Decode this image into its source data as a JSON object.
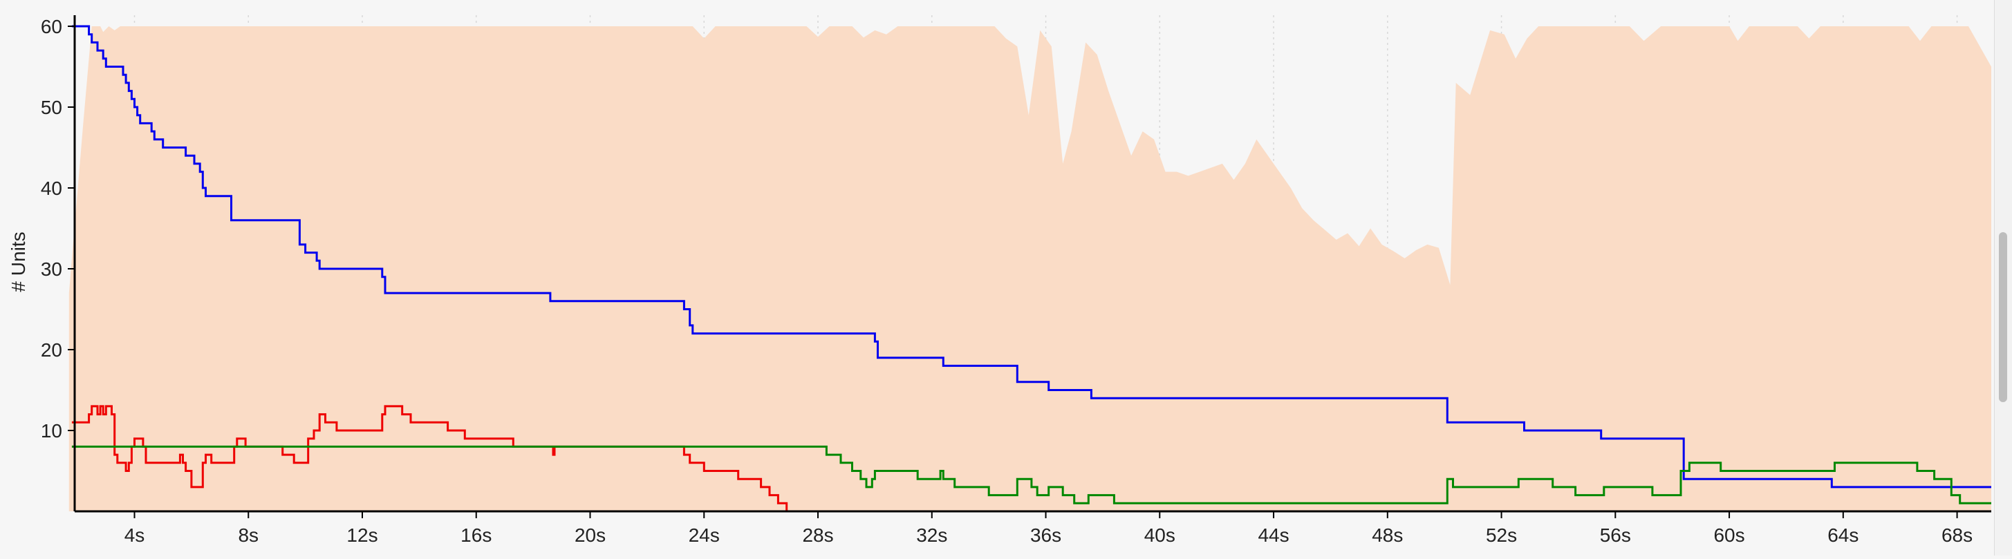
{
  "chart_data": {
    "type": "line",
    "title": "",
    "xlabel": "",
    "ylabel": "# Units",
    "xlim": [
      1.9,
      69.2
    ],
    "ylim": [
      0,
      61
    ],
    "x_ticks": [
      4,
      8,
      12,
      16,
      20,
      24,
      28,
      32,
      36,
      40,
      44,
      48,
      52,
      56,
      60,
      64,
      68
    ],
    "x_tick_labels": [
      "4s",
      "8s",
      "12s",
      "16s",
      "20s",
      "24s",
      "28s",
      "32s",
      "36s",
      "40s",
      "44s",
      "48s",
      "52s",
      "56s",
      "60s",
      "64s",
      "68s"
    ],
    "y_ticks": [
      10,
      20,
      30,
      40,
      50,
      60
    ],
    "y_tick_labels": [
      "10",
      "20",
      "30",
      "40",
      "50",
      "60"
    ],
    "grid": "vertical-dashed",
    "legend": "none",
    "colors": {
      "area": "#fadcc6",
      "blue": "#0000ee",
      "red": "#ee0000",
      "green": "#008800",
      "grid": "#d8d8d8",
      "axis": "#000000"
    },
    "series": [
      {
        "type": "area",
        "color": "#fadcc6",
        "points": [
          [
            1.7,
            27
          ],
          [
            2.2,
            48
          ],
          [
            2.5,
            60
          ],
          [
            2.8,
            60
          ],
          [
            2.9,
            59.3
          ],
          [
            3.1,
            60
          ],
          [
            3.3,
            59.5
          ],
          [
            3.5,
            60
          ],
          [
            20,
            60
          ],
          [
            23.6,
            60
          ],
          [
            24,
            58.5
          ],
          [
            24.4,
            60
          ],
          [
            27.6,
            60
          ],
          [
            28,
            58.7
          ],
          [
            28.4,
            60
          ],
          [
            29.2,
            60
          ],
          [
            29.6,
            58.6
          ],
          [
            30,
            59.5
          ],
          [
            30.4,
            59
          ],
          [
            30.8,
            60
          ],
          [
            34.2,
            60
          ],
          [
            34.6,
            58.5
          ],
          [
            35,
            57.5
          ],
          [
            35.4,
            49
          ],
          [
            35.8,
            59.5
          ],
          [
            36.2,
            57.5
          ],
          [
            36.6,
            43
          ],
          [
            36.9,
            47
          ],
          [
            37.4,
            58
          ],
          [
            37.8,
            56.5
          ],
          [
            38.2,
            52
          ],
          [
            38.6,
            48
          ],
          [
            39,
            44
          ],
          [
            39.4,
            47
          ],
          [
            39.8,
            46
          ],
          [
            40.2,
            42
          ],
          [
            40.6,
            42
          ],
          [
            41,
            41.5
          ],
          [
            41.4,
            42
          ],
          [
            41.8,
            42.5
          ],
          [
            42.2,
            43
          ],
          [
            42.6,
            41
          ],
          [
            43,
            43
          ],
          [
            43.4,
            46
          ],
          [
            43.8,
            44
          ],
          [
            44.2,
            42
          ],
          [
            44.6,
            40
          ],
          [
            45,
            37.5
          ],
          [
            45.4,
            36
          ],
          [
            45.8,
            34.8
          ],
          [
            46.2,
            33.6
          ],
          [
            46.6,
            34.4
          ],
          [
            47,
            32.8
          ],
          [
            47.4,
            35
          ],
          [
            47.8,
            33
          ],
          [
            48.2,
            32.2
          ],
          [
            48.6,
            31.3
          ],
          [
            49,
            32.3
          ],
          [
            49.4,
            33
          ],
          [
            49.8,
            32.6
          ],
          [
            50.2,
            28
          ],
          [
            50.4,
            53
          ],
          [
            50.9,
            51.5
          ],
          [
            51.6,
            59.5
          ],
          [
            52.1,
            59
          ],
          [
            52.5,
            56
          ],
          [
            52.9,
            58.5
          ],
          [
            53.3,
            60
          ],
          [
            56.5,
            60
          ],
          [
            57,
            58.2
          ],
          [
            57.6,
            60
          ],
          [
            60,
            60
          ],
          [
            60.3,
            58.2
          ],
          [
            60.7,
            60
          ],
          [
            62.4,
            60
          ],
          [
            62.8,
            58.5
          ],
          [
            63.2,
            60
          ],
          [
            66.3,
            60
          ],
          [
            66.7,
            58.2
          ],
          [
            67.1,
            60
          ],
          [
            68.4,
            60
          ],
          [
            68.8,
            57.5
          ],
          [
            69.2,
            55
          ]
        ]
      },
      {
        "name": "",
        "color": "#0000ee",
        "steps": [
          [
            1.8,
            60
          ],
          [
            2.4,
            59
          ],
          [
            2.5,
            58
          ],
          [
            2.7,
            57
          ],
          [
            2.9,
            56
          ],
          [
            3,
            55
          ],
          [
            3.6,
            54
          ],
          [
            3.7,
            53
          ],
          [
            3.8,
            52
          ],
          [
            3.9,
            51
          ],
          [
            4,
            50
          ],
          [
            4.1,
            49
          ],
          [
            4.2,
            48
          ],
          [
            4.6,
            47
          ],
          [
            4.7,
            46
          ],
          [
            5,
            45
          ],
          [
            5.8,
            44
          ],
          [
            6.1,
            43
          ],
          [
            6.3,
            42
          ],
          [
            6.4,
            40
          ],
          [
            6.5,
            39
          ],
          [
            7.4,
            36
          ],
          [
            9.8,
            33
          ],
          [
            10,
            32
          ],
          [
            10.4,
            31
          ],
          [
            10.5,
            30
          ],
          [
            12.7,
            29
          ],
          [
            12.8,
            27
          ],
          [
            18.6,
            26
          ],
          [
            23.3,
            25
          ],
          [
            23.5,
            23
          ],
          [
            23.6,
            22
          ],
          [
            30,
            21
          ],
          [
            30.1,
            19
          ],
          [
            32.4,
            18
          ],
          [
            35,
            16
          ],
          [
            36.1,
            15
          ],
          [
            37.6,
            14
          ],
          [
            50.1,
            11
          ],
          [
            52.8,
            10
          ],
          [
            55.5,
            9
          ],
          [
            58.4,
            4
          ],
          [
            63.6,
            3
          ],
          [
            69.2,
            3
          ]
        ]
      },
      {
        "name": "",
        "color": "#ee0000",
        "steps": [
          [
            1.8,
            11
          ],
          [
            2.4,
            12
          ],
          [
            2.5,
            13
          ],
          [
            2.7,
            12
          ],
          [
            2.8,
            13
          ],
          [
            2.9,
            12
          ],
          [
            3,
            13
          ],
          [
            3.2,
            12
          ],
          [
            3.3,
            7
          ],
          [
            3.4,
            6
          ],
          [
            3.7,
            5
          ],
          [
            3.8,
            6
          ],
          [
            3.9,
            8
          ],
          [
            4,
            9
          ],
          [
            4.3,
            8
          ],
          [
            4.4,
            6
          ],
          [
            5.6,
            7
          ],
          [
            5.7,
            6
          ],
          [
            5.8,
            5
          ],
          [
            6,
            3
          ],
          [
            6.4,
            6
          ],
          [
            6.5,
            7
          ],
          [
            6.7,
            6
          ],
          [
            7.5,
            8
          ],
          [
            7.6,
            9
          ],
          [
            7.9,
            8
          ],
          [
            9.2,
            7
          ],
          [
            9.6,
            6
          ],
          [
            10.1,
            9
          ],
          [
            10.3,
            10
          ],
          [
            10.5,
            12
          ],
          [
            10.7,
            11
          ],
          [
            11.1,
            10
          ],
          [
            12.7,
            12
          ],
          [
            12.8,
            13
          ],
          [
            13.4,
            12
          ],
          [
            13.7,
            11
          ],
          [
            15,
            10
          ],
          [
            15.6,
            9
          ],
          [
            17.3,
            8
          ],
          [
            18.7,
            7
          ],
          [
            18.75,
            8
          ],
          [
            23.3,
            7
          ],
          [
            23.5,
            6
          ],
          [
            24,
            5
          ],
          [
            25.2,
            4
          ],
          [
            26,
            3
          ],
          [
            26.3,
            2
          ],
          [
            26.6,
            1
          ],
          [
            26.9,
            0
          ],
          [
            69.2,
            0
          ]
        ]
      },
      {
        "name": "",
        "color": "#008800",
        "steps": [
          [
            1.8,
            8
          ],
          [
            28.3,
            7
          ],
          [
            28.8,
            6
          ],
          [
            29.2,
            5
          ],
          [
            29.5,
            4
          ],
          [
            29.7,
            3
          ],
          [
            29.9,
            4
          ],
          [
            30,
            5
          ],
          [
            31.5,
            4
          ],
          [
            32.3,
            5
          ],
          [
            32.4,
            4
          ],
          [
            32.7,
            4
          ],
          [
            32.8,
            3
          ],
          [
            33.2,
            3
          ],
          [
            34,
            2
          ],
          [
            35,
            4
          ],
          [
            35.5,
            3
          ],
          [
            35.7,
            2
          ],
          [
            36.1,
            3
          ],
          [
            36.6,
            2
          ],
          [
            37,
            1
          ],
          [
            37.5,
            2
          ],
          [
            38.4,
            1
          ],
          [
            50.1,
            4
          ],
          [
            50.3,
            3
          ],
          [
            52.6,
            4
          ],
          [
            53.8,
            3
          ],
          [
            54.6,
            2
          ],
          [
            55.6,
            3
          ],
          [
            57.3,
            2
          ],
          [
            58.3,
            5
          ],
          [
            58.6,
            6
          ],
          [
            59.7,
            5
          ],
          [
            63.7,
            6
          ],
          [
            66.6,
            5
          ],
          [
            67.2,
            4
          ],
          [
            67.8,
            2
          ],
          [
            68.1,
            1
          ],
          [
            69.2,
            1
          ]
        ]
      }
    ]
  }
}
